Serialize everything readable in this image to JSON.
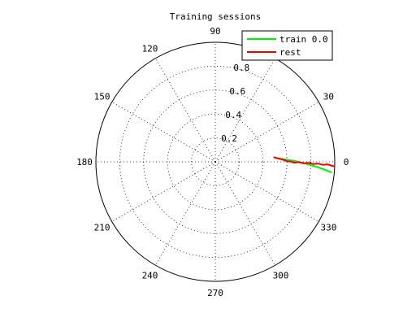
{
  "chart_data": {
    "type": "line",
    "title": "Training sessions",
    "polar": true,
    "r_range": [
      0,
      1
    ],
    "r_ticks": [
      0.2,
      0.4,
      0.6,
      0.8
    ],
    "r_tick_labels": [
      "0.2",
      "0.4",
      "0.6",
      "0.8"
    ],
    "theta_ticks": [
      0,
      30,
      60,
      90,
      120,
      150,
      180,
      210,
      240,
      270,
      300,
      330
    ],
    "theta_tick_labels": [
      "0",
      "30",
      "60",
      "90",
      "120",
      "150",
      "180",
      "210",
      "240",
      "270",
      "300",
      "330"
    ],
    "grid": true,
    "legend_position": "top-right",
    "series": [
      {
        "name": "train 0.0",
        "color": "#00ee00",
        "points": [
          {
            "theta": 4.1,
            "r": 0.497
          },
          {
            "theta": 0.0,
            "r": 0.7
          },
          {
            "theta": -3.0,
            "r": 0.86
          },
          {
            "theta": -5.2,
            "r": 0.98
          }
        ]
      },
      {
        "name": "rest",
        "color": "#ee0000",
        "points": [
          {
            "theta": 4.5,
            "r": 0.49
          },
          {
            "theta": 3.2,
            "r": 0.52
          },
          {
            "theta": 2.0,
            "r": 0.56
          },
          {
            "theta": 0.5,
            "r": 0.6
          },
          {
            "theta": 0.2,
            "r": 0.63
          },
          {
            "theta": -0.6,
            "r": 0.66
          },
          {
            "theta": -0.3,
            "r": 0.7
          },
          {
            "theta": -1.0,
            "r": 0.74
          },
          {
            "theta": -0.6,
            "r": 0.78
          },
          {
            "theta": -1.3,
            "r": 0.82
          },
          {
            "theta": -1.0,
            "r": 0.86
          },
          {
            "theta": -1.6,
            "r": 0.9
          },
          {
            "theta": -1.3,
            "r": 0.94
          },
          {
            "theta": -2.0,
            "r": 0.98
          },
          {
            "theta": -2.2,
            "r": 1.0
          }
        ]
      }
    ]
  }
}
